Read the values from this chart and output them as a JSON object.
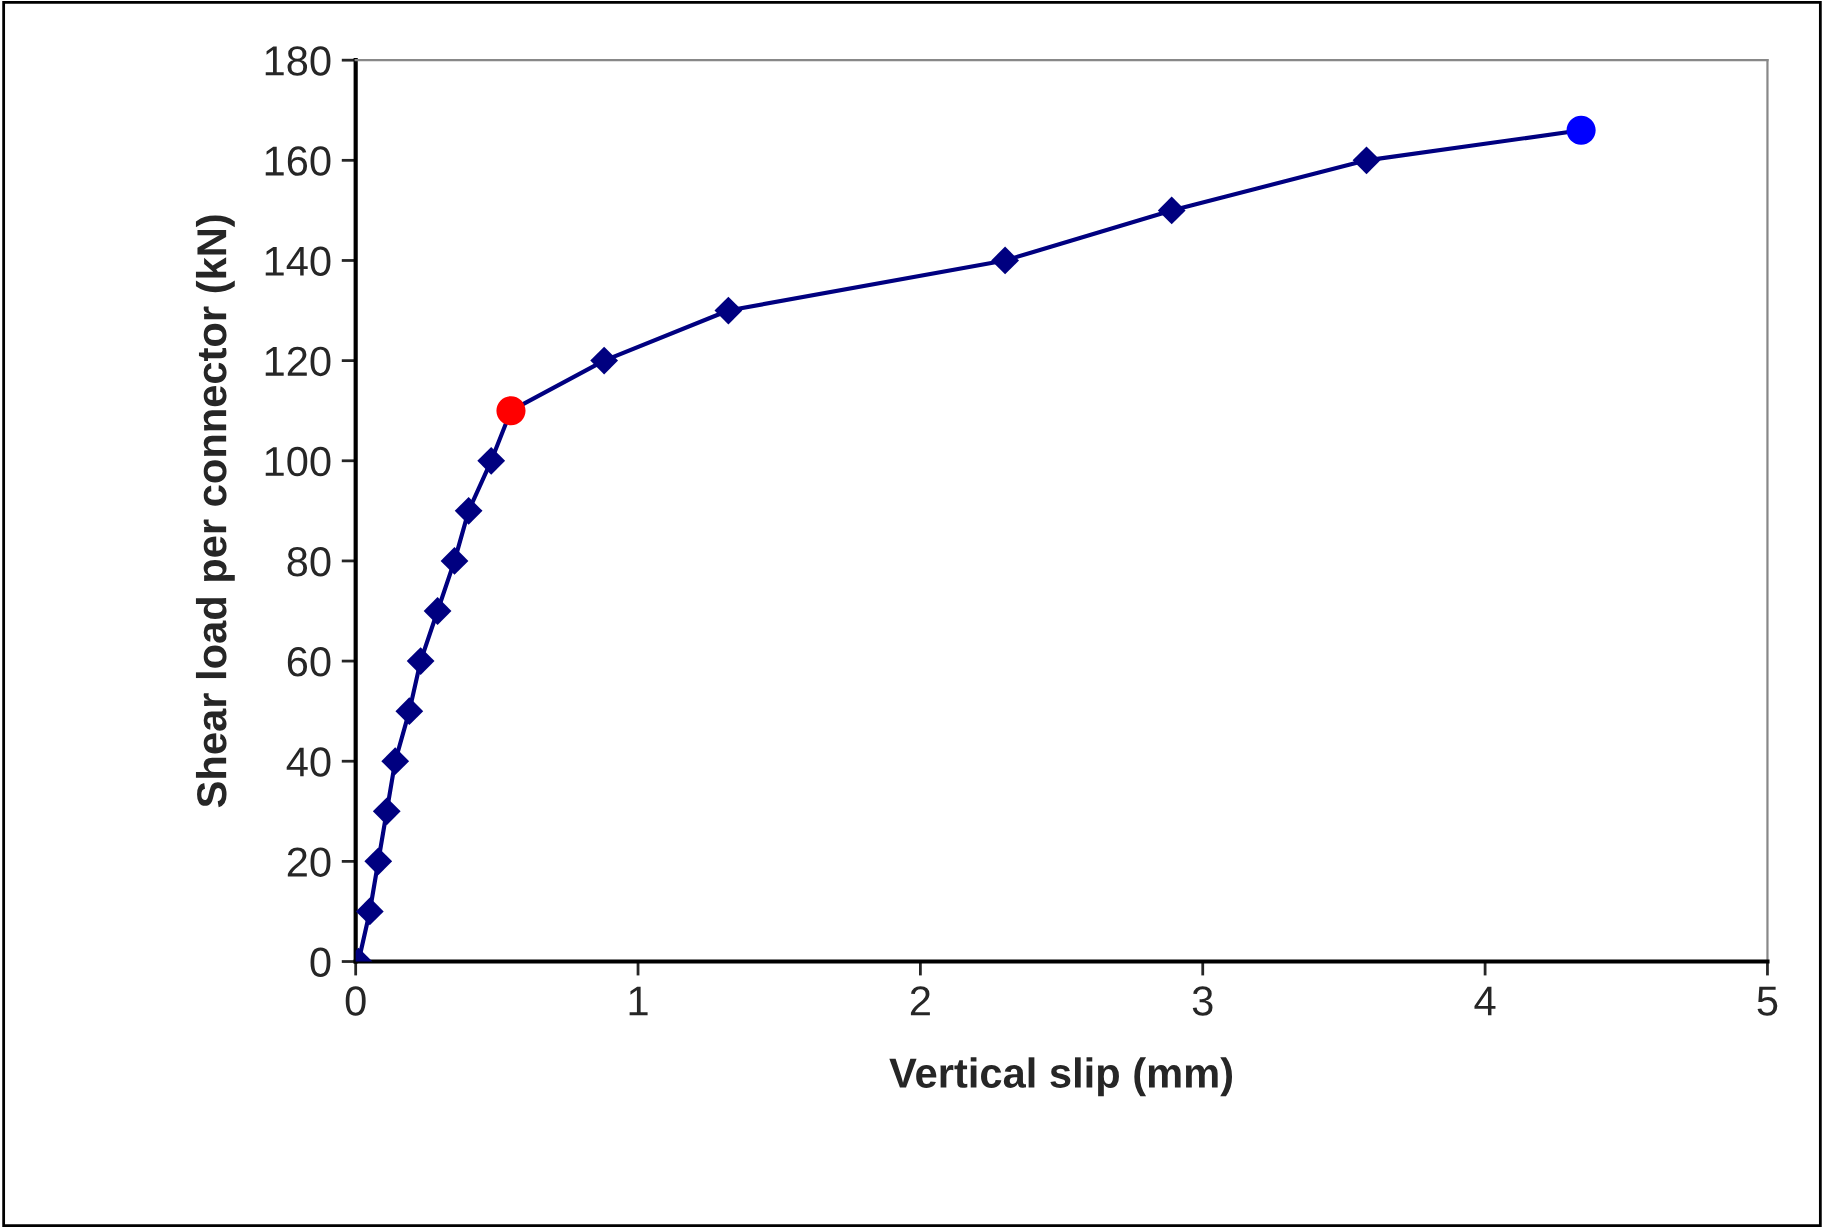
{
  "chart_data": {
    "type": "line",
    "xlabel": "Vertical slip (mm)",
    "ylabel": "Shear load per connector (kN)",
    "xlim": [
      0,
      5
    ],
    "xticks": [
      0,
      1,
      2,
      3,
      4,
      5
    ],
    "ylim": [
      0,
      180
    ],
    "yticks": [
      0,
      20,
      40,
      60,
      80,
      100,
      120,
      140,
      160,
      180
    ],
    "grid": false,
    "legend": false,
    "series": [
      {
        "type": "line",
        "color": "#000080",
        "marker": "none",
        "x": [
          0.01,
          0.05,
          0.08,
          0.11,
          0.14,
          0.19,
          0.23,
          0.29,
          0.35,
          0.4,
          0.48,
          0.55,
          0.88,
          1.32,
          2.3,
          2.89,
          3.58,
          4.34
        ],
        "values": [
          0,
          10,
          20,
          30,
          40,
          50,
          60,
          70,
          80,
          90,
          100,
          110,
          120,
          130,
          140,
          150,
          160,
          166
        ]
      },
      {
        "type": "scatter",
        "color": "#000080",
        "marker": "diamond",
        "x": [
          0.01,
          0.05,
          0.08,
          0.11,
          0.14,
          0.19,
          0.23,
          0.29,
          0.35,
          0.4,
          0.48,
          0.88,
          1.32,
          2.3,
          2.89,
          3.58
        ],
        "values": [
          0,
          10,
          20,
          30,
          40,
          50,
          60,
          70,
          80,
          90,
          100,
          120,
          130,
          140,
          150,
          160
        ]
      },
      {
        "type": "scatter",
        "color": "#ff0000",
        "marker": "circle",
        "x": [
          0.55
        ],
        "values": [
          110
        ]
      },
      {
        "type": "scatter",
        "color": "#0000ff",
        "marker": "circle",
        "x": [
          4.34
        ],
        "values": [
          166
        ]
      }
    ]
  }
}
